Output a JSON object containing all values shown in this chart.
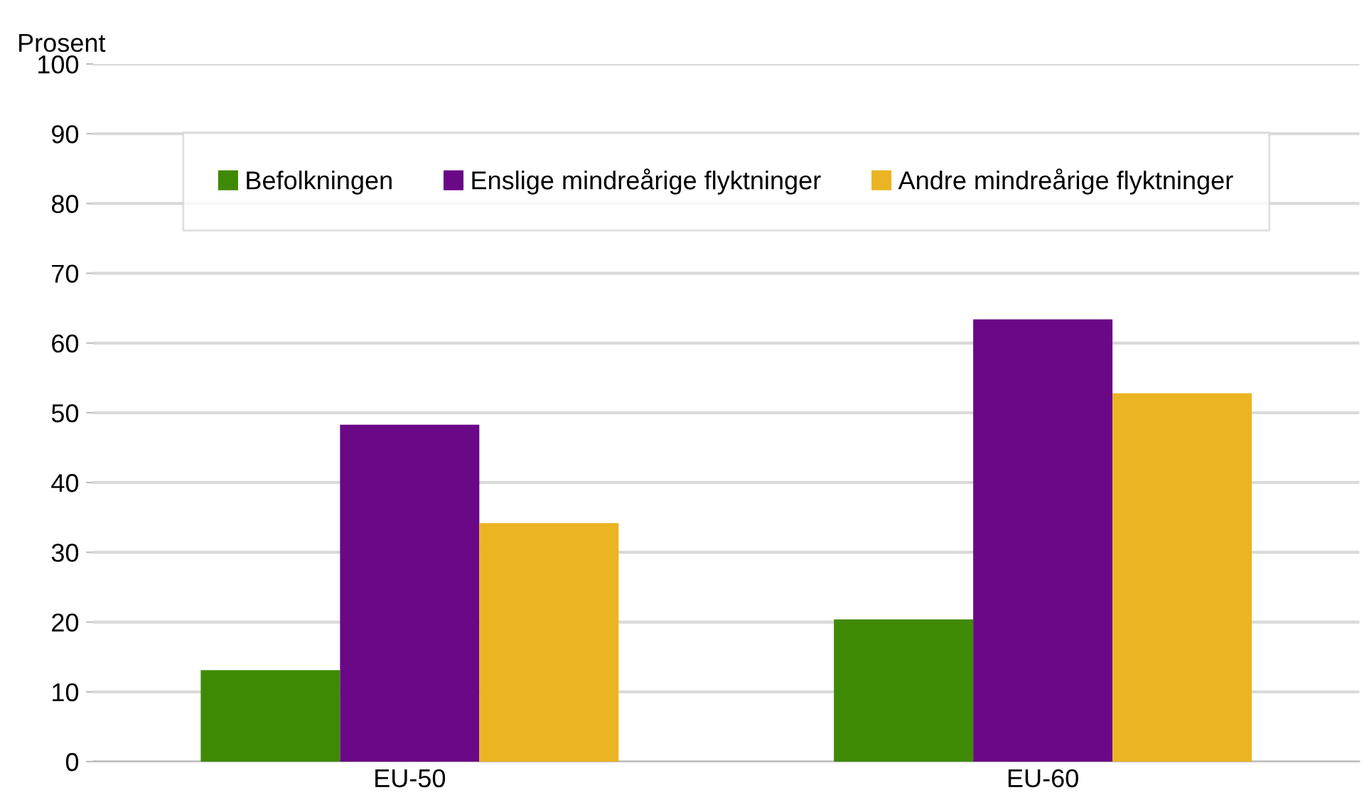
{
  "chart_data": {
    "type": "bar",
    "ylabel": "Prosent",
    "categories": [
      "EU-50",
      "EU-60"
    ],
    "series": [
      {
        "name": "Befolkningen",
        "color": "#3f8a04",
        "values": [
          13.1,
          20.4
        ]
      },
      {
        "name": "Enslige mindreårige flyktninger",
        "color": "#6a0888",
        "values": [
          48.3,
          63.4
        ]
      },
      {
        "name": "Andre mindreårige flyktninger",
        "color": "#ebb422",
        "values": [
          34.2,
          52.8
        ]
      }
    ],
    "ylim": [
      0,
      100
    ],
    "yticks": [
      0,
      10,
      20,
      30,
      40,
      50,
      60,
      70,
      80,
      90,
      100
    ],
    "grid": "y",
    "legend": "top"
  }
}
